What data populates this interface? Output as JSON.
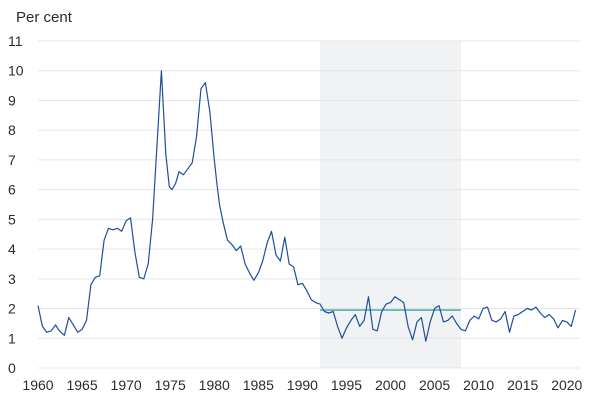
{
  "chart_data": {
    "type": "line",
    "ylabel": "Per cent",
    "xlim": [
      1960,
      2021.5
    ],
    "ylim": [
      0,
      11
    ],
    "grid": true,
    "x_ticks": [
      1960,
      1965,
      1970,
      1975,
      1980,
      1985,
      1990,
      1995,
      2000,
      2005,
      2010,
      2015,
      2020
    ],
    "y_ticks": [
      0,
      1,
      2,
      3,
      4,
      5,
      6,
      7,
      8,
      9,
      10,
      11
    ],
    "shaded_region": {
      "x_start": 1992,
      "x_end": 2008
    },
    "reference_line": {
      "x_start": 1992,
      "x_end": 2008,
      "y": 1.95
    },
    "series": [
      {
        "x": [
          1960.0,
          1960.5,
          1961.0,
          1961.5,
          1962.0,
          1962.3,
          1962.6,
          1963.0,
          1963.5,
          1964.0,
          1964.5,
          1965.0,
          1965.5,
          1966.0,
          1966.5,
          1967.0,
          1967.5,
          1968.0,
          1968.5,
          1969.0,
          1969.5,
          1970.0,
          1970.5,
          1971.0,
          1971.5,
          1972.0,
          1972.5,
          1973.0,
          1973.5,
          1974.0,
          1974.5,
          1974.9,
          1975.2,
          1975.6,
          1976.0,
          1976.5,
          1977.0,
          1977.5,
          1978.0,
          1978.5,
          1979.0,
          1979.5,
          1980.0,
          1980.3,
          1980.6,
          1981.0,
          1981.5,
          1982.0,
          1982.5,
          1983.0,
          1983.5,
          1984.0,
          1984.5,
          1985.0,
          1985.5,
          1986.0,
          1986.5,
          1987.0,
          1987.5,
          1988.0,
          1988.5,
          1989.0,
          1989.5,
          1990.0,
          1990.5,
          1991.0,
          1991.5,
          1992.0,
          1992.5,
          1993.0,
          1993.5,
          1994.0,
          1994.5,
          1995.0,
          1995.5,
          1996.0,
          1996.5,
          1997.0,
          1997.5,
          1998.0,
          1998.5,
          1999.0,
          1999.5,
          2000.0,
          2000.5,
          2001.0,
          2001.5,
          2002.0,
          2002.5,
          2003.0,
          2003.5,
          2004.0,
          2004.5,
          2005.0,
          2005.5,
          2006.0,
          2006.5,
          2007.0,
          2007.5,
          2008.0,
          2008.5,
          2009.0,
          2009.5,
          2010.0,
          2010.5,
          2011.0,
          2011.5,
          2012.0,
          2012.5,
          2013.0,
          2013.5,
          2014.0,
          2014.5,
          2015.0,
          2015.5,
          2016.0,
          2016.5,
          2017.0,
          2017.5,
          2018.0,
          2018.5,
          2019.0,
          2019.5,
          2020.0,
          2020.5,
          2021.0
        ],
        "values": [
          2.1,
          1.4,
          1.2,
          1.25,
          1.45,
          1.3,
          1.2,
          1.1,
          1.7,
          1.45,
          1.2,
          1.3,
          1.6,
          2.8,
          3.05,
          3.1,
          4.3,
          4.7,
          4.65,
          4.7,
          4.6,
          4.95,
          5.05,
          3.9,
          3.05,
          3.0,
          3.5,
          5.0,
          7.5,
          10.0,
          7.2,
          6.1,
          6.0,
          6.2,
          6.6,
          6.5,
          6.7,
          6.9,
          7.8,
          9.4,
          9.6,
          8.6,
          7.0,
          6.2,
          5.5,
          4.9,
          4.3,
          4.15,
          3.95,
          4.1,
          3.5,
          3.2,
          2.95,
          3.2,
          3.6,
          4.2,
          4.6,
          3.8,
          3.6,
          4.4,
          3.5,
          3.4,
          2.8,
          2.85,
          2.6,
          2.3,
          2.2,
          2.15,
          1.9,
          1.85,
          1.9,
          1.4,
          1.0,
          1.35,
          1.6,
          1.8,
          1.4,
          1.6,
          2.4,
          1.3,
          1.25,
          1.9,
          2.15,
          2.2,
          2.4,
          2.3,
          2.2,
          1.4,
          0.95,
          1.55,
          1.7,
          0.9,
          1.55,
          2.0,
          2.1,
          1.55,
          1.6,
          1.75,
          1.5,
          1.3,
          1.25,
          1.6,
          1.75,
          1.65,
          2.0,
          2.05,
          1.6,
          1.55,
          1.65,
          1.9,
          1.2,
          1.75,
          1.8,
          1.9,
          2.0,
          1.95,
          2.05,
          1.85,
          1.7,
          1.8,
          1.65,
          1.35,
          1.6,
          1.55,
          1.4,
          1.95
        ]
      }
    ]
  }
}
